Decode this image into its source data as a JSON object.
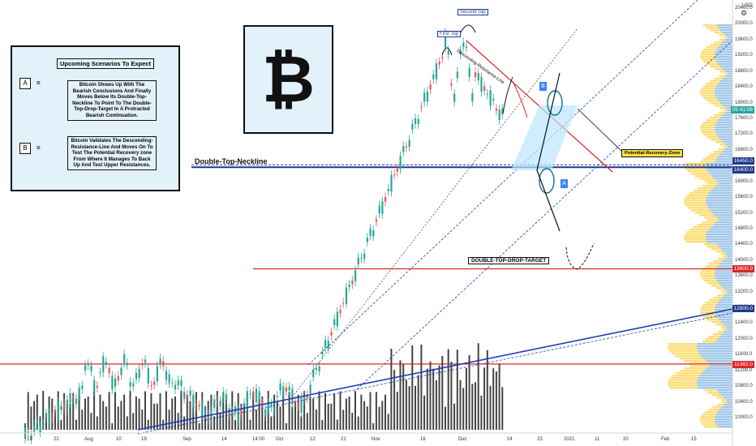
{
  "chart_data": {
    "type": "candlestick",
    "title": "",
    "currency_label": "USD",
    "y_ticks": [
      "20400.0",
      "20000.0",
      "19600.0",
      "19200.0",
      "18800.0",
      "18400.0",
      "18000.0",
      "17600.0",
      "17200.0",
      "16800.0",
      "16000.0",
      "15600.0",
      "15200.0",
      "14800.0",
      "14400.0",
      "14000.0",
      "13600.0",
      "13200.0",
      "12800.0",
      "12400.0",
      "12000.0",
      "11600.0",
      "11200.0",
      "10800.0",
      "10400.0",
      "10000.0"
    ],
    "x_ticks": [
      "13",
      "22",
      "Aug",
      "10",
      "19",
      "Sep",
      "14",
      "14:00",
      "Oct",
      "12",
      "21",
      "Nov",
      "16",
      "Dec",
      "14",
      "23",
      "2021",
      "11",
      "20",
      "Feb",
      "15"
    ],
    "price_tags": [
      {
        "label": "16450.0",
        "color": "#1e3a8a"
      },
      {
        "label": "16400.0",
        "color": "#1e3a8a"
      },
      {
        "label": "13800.0",
        "color": "#dc2626"
      },
      {
        "label": "11382.0",
        "color": "#dc2626"
      },
      {
        "label": "12800.0",
        "color": "#1e3a8a"
      },
      {
        "label": "05:41:08",
        "color": "#26a69a"
      }
    ],
    "levels": {
      "double_top_neckline": 16400,
      "double_top_drop_target": 13800,
      "support_red": 11382
    },
    "annotations": {
      "first_top": "First Top",
      "second_top": "Second Top",
      "descending_resistance": "Descending-Resistance-Line",
      "neckline": "Double-Top-Neckline",
      "drop_target": "DOUBLE-TOP-DROP-TARGET",
      "recovery_zone": "Potential-Recovery-Zone",
      "label_a": "A",
      "label_b": "B"
    },
    "colors": {
      "up": "#26a69a",
      "down": "#ef5350",
      "volume": "#444444",
      "resistance": "#dc2626",
      "trend": "#1e40af"
    }
  },
  "scenarios": {
    "title": "Upcoming Scenarios To Expect",
    "items": [
      {
        "key": "A",
        "eq": "=",
        "text": "Bitcoin Shows Up With The Bearish Conclusions And Finally Moves Below Its Double-Top-Neckline To Point To The Double-Top-Drop-Target In A Protracted Bearish Continuation."
      },
      {
        "key": "B",
        "eq": "=",
        "text": "Bitcoin Validates The Descending-Resistance-Line And Moves On To Test The Potential Recovery zone From Where It Manages To Back Up And Test Upper Resistances."
      }
    ]
  },
  "logo": {
    "glyph": "₿",
    "icon": "bitcoin-icon"
  }
}
